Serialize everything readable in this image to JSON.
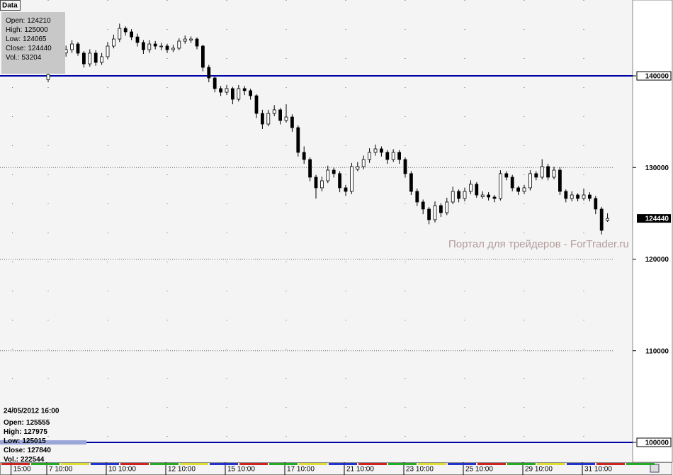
{
  "chart_data": {
    "type": "candlestick",
    "tab": "Data",
    "watermark": "Портал для трейдеров - ForTrader.ru",
    "categories": [
      "15:00",
      null,
      null,
      null,
      null,
      null,
      "7 10:00",
      null,
      null,
      null,
      null,
      null,
      null,
      null,
      null,
      null,
      "10 10:00",
      null,
      null,
      null,
      null,
      null,
      null,
      null,
      null,
      null,
      "12 10:00",
      null,
      null,
      null,
      null,
      null,
      null,
      null,
      null,
      null,
      "15 10:00",
      null,
      null,
      null,
      null,
      null,
      null,
      null,
      null,
      null,
      "17 10:00",
      null,
      null,
      null,
      null,
      null,
      null,
      null,
      null,
      null,
      "21 10:00",
      null,
      null,
      null,
      null,
      null,
      null,
      null,
      null,
      null,
      "23 10:00",
      null,
      null,
      null,
      null,
      null,
      null,
      null,
      null,
      null,
      "25 10:00",
      null,
      null,
      null,
      null,
      null,
      null,
      null,
      null,
      null,
      "29 10:00",
      null,
      null,
      null,
      null,
      null,
      null,
      null,
      null,
      null,
      "31 10:00",
      null,
      null,
      null,
      null
    ],
    "ohlc": [
      null,
      null,
      null,
      null,
      null,
      null,
      [
        139600,
        140400,
        139300,
        140150
      ],
      null,
      null,
      [
        142500,
        143300,
        142100,
        142860
      ],
      [
        142860,
        143900,
        142500,
        143480
      ],
      [
        143480,
        143700,
        142200,
        142480
      ],
      [
        142480,
        142700,
        140900,
        141310
      ],
      [
        141310,
        142900,
        141000,
        142480
      ],
      [
        142480,
        142800,
        141100,
        141470
      ],
      [
        141470,
        142500,
        141200,
        142090
      ],
      [
        142090,
        143700,
        141800,
        143250
      ],
      [
        143250,
        144500,
        143000,
        144020
      ],
      [
        144020,
        145700,
        143700,
        145180
      ],
      [
        145180,
        145400,
        144400,
        144800
      ],
      [
        144800,
        145100,
        143900,
        144250
      ],
      [
        144250,
        144600,
        143200,
        143640
      ],
      [
        143640,
        143900,
        142400,
        142860
      ],
      [
        142860,
        143900,
        142500,
        143480
      ],
      [
        143480,
        143800,
        142900,
        143250
      ],
      [
        143250,
        143600,
        142800,
        143250
      ],
      [
        143250,
        143500,
        142500,
        142860
      ],
      [
        142860,
        143400,
        142600,
        143020
      ],
      [
        143020,
        144100,
        142800,
        143790
      ],
      [
        143790,
        144400,
        143500,
        144020
      ],
      [
        143900,
        144300,
        143600,
        144020
      ],
      [
        144020,
        144200,
        142900,
        143250
      ],
      [
        143250,
        143400,
        140500,
        140930
      ],
      [
        140930,
        141200,
        139300,
        139770
      ],
      [
        139770,
        140000,
        138200,
        138610
      ],
      [
        138610,
        138900,
        137800,
        138220
      ],
      [
        138220,
        139000,
        137900,
        138610
      ],
      [
        138610,
        138800,
        136900,
        137450
      ],
      [
        137450,
        139000,
        137200,
        138610
      ],
      [
        138610,
        138900,
        137900,
        138380
      ],
      [
        138380,
        138600,
        137400,
        137830
      ],
      [
        137830,
        138000,
        135400,
        135900
      ],
      [
        135900,
        136300,
        134200,
        134740
      ],
      [
        134740,
        136300,
        134500,
        135900
      ],
      [
        135900,
        136800,
        135600,
        136290
      ],
      [
        136290,
        136500,
        134700,
        135130
      ],
      [
        135130,
        136900,
        134900,
        135510
      ],
      [
        135510,
        135800,
        133900,
        134350
      ],
      [
        134350,
        134600,
        131200,
        131650
      ],
      [
        131650,
        132300,
        130400,
        130870
      ],
      [
        130870,
        131100,
        128500,
        128940
      ],
      [
        128940,
        129200,
        126600,
        127780
      ],
      [
        127780,
        129000,
        127400,
        128550
      ],
      [
        128550,
        130200,
        128300,
        129710
      ],
      [
        129710,
        130000,
        128900,
        129330
      ],
      [
        129330,
        129600,
        127300,
        127780
      ],
      [
        127780,
        128100,
        126900,
        127390
      ],
      [
        127390,
        130500,
        127100,
        130100
      ],
      [
        129800,
        130600,
        129600,
        130100
      ],
      [
        130100,
        131300,
        129800,
        130870
      ],
      [
        130870,
        132100,
        130500,
        131650
      ],
      [
        131650,
        132500,
        131300,
        132030
      ],
      [
        132030,
        132300,
        131200,
        131650
      ],
      [
        131650,
        131900,
        130400,
        130870
      ],
      [
        130870,
        132000,
        130600,
        131650
      ],
      [
        131650,
        131900,
        130400,
        130870
      ],
      [
        130870,
        131100,
        128900,
        129330
      ],
      [
        129330,
        129600,
        127000,
        127390
      ],
      [
        127390,
        127700,
        125800,
        126230
      ],
      [
        126230,
        126500,
        124900,
        125460
      ],
      [
        125460,
        125700,
        123800,
        124300
      ],
      [
        124300,
        126300,
        124000,
        125840
      ],
      [
        125840,
        126100,
        124600,
        125070
      ],
      [
        125070,
        126700,
        124800,
        126230
      ],
      [
        126230,
        127900,
        126000,
        127390
      ],
      [
        127390,
        127600,
        126200,
        126620
      ],
      [
        126620,
        127800,
        126300,
        127390
      ],
      [
        127390,
        128600,
        127100,
        128170
      ],
      [
        128170,
        128400,
        126700,
        127000
      ],
      [
        126800,
        127400,
        126600,
        127000
      ],
      [
        127000,
        127300,
        126400,
        126770
      ],
      [
        126770,
        127000,
        126200,
        126620
      ],
      [
        126620,
        129700,
        126400,
        129330
      ],
      [
        129330,
        129600,
        128600,
        128940
      ],
      [
        128940,
        129200,
        127400,
        127780
      ],
      [
        127780,
        128000,
        127000,
        127390
      ],
      [
        127390,
        128100,
        127100,
        127780
      ],
      [
        127780,
        129700,
        127500,
        129330
      ],
      [
        129330,
        129600,
        128600,
        128940
      ],
      [
        128940,
        130900,
        128700,
        130100
      ],
      [
        130100,
        130400,
        128600,
        128940
      ],
      [
        128940,
        130100,
        128700,
        129710
      ],
      [
        129710,
        130000,
        127000,
        127390
      ],
      [
        127390,
        127600,
        126200,
        126620
      ],
      [
        126620,
        127400,
        126300,
        127000
      ],
      [
        127000,
        127200,
        126300,
        126620
      ],
      [
        126620,
        127700,
        126400,
        127000
      ],
      [
        127000,
        127300,
        126300,
        126620
      ],
      [
        126620,
        126900,
        124900,
        125460
      ],
      [
        125460,
        125700,
        122700,
        123140
      ],
      [
        124210,
        125000,
        124065,
        124440
      ]
    ],
    "ylim": [
      97830,
      148280
    ],
    "yticks": [
      100000,
      110000,
      120000,
      130000,
      140000
    ],
    "levels": [
      140000,
      100000
    ],
    "level_color": "#0000a8",
    "last_price": 124440,
    "grid": true,
    "info_top": [
      {
        "label": "Open:",
        "value": 124210
      },
      {
        "label": "High:",
        "value": 125000
      },
      {
        "label": "Low:",
        "value": 124065
      },
      {
        "label": "Close:",
        "value": 124440
      },
      {
        "label": "Vol.:",
        "value": 53204
      }
    ],
    "info_bottom_date": "24/05/2012 16:00",
    "info_bottom": [
      {
        "label": "Open:",
        "value": 125555
      },
      {
        "label": "High:",
        "value": 127975
      },
      {
        "label": "Low:",
        "value": 125015
      },
      {
        "label": "Close:",
        "value": 127840
      },
      {
        "label": "Vol.:",
        "value": 222544
      }
    ]
  }
}
